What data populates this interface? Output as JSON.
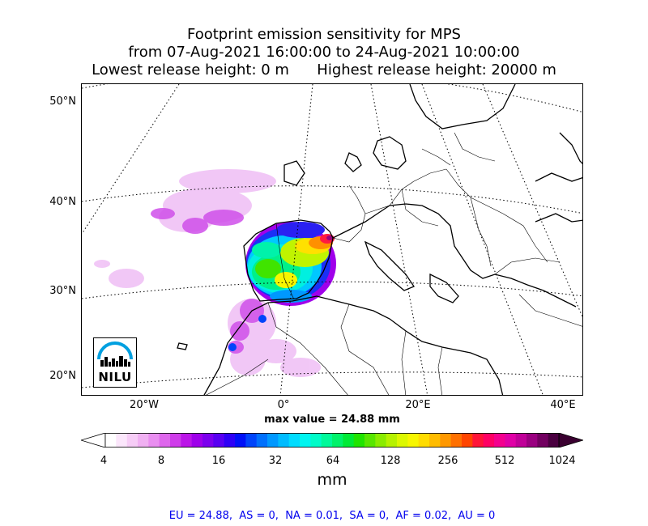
{
  "title": {
    "line1": "Footprint emission sensitivity for MPS",
    "line2": "from 07-Aug-2021 16:00:00 to 24-Aug-2021 10:00:00",
    "line3": "Lowest release height: 0 m      Highest release height: 20000 m"
  },
  "map": {
    "lat_labels": [
      "50°N",
      "40°N",
      "30°N",
      "20°N"
    ],
    "lon_labels": [
      "20°W",
      "0°",
      "20°E",
      "40°E"
    ],
    "max_value_text": "max value = 24.88 mm",
    "logo_text": "NILU"
  },
  "colorbar": {
    "tick_labels": [
      "4",
      "8",
      "16",
      "32",
      "64",
      "128",
      "256",
      "512",
      "1024"
    ],
    "units": "mm",
    "colors": [
      "#ffffff",
      "#fbe6fb",
      "#f6ccf6",
      "#f0b0f2",
      "#e98ef0",
      "#de66ec",
      "#cf3cea",
      "#bb14e8",
      "#9e00ea",
      "#7c00ee",
      "#5800f2",
      "#2e00f6",
      "#0010f8",
      "#0044fb",
      "#0070fd",
      "#0098ff",
      "#00bcff",
      "#00dcff",
      "#00f5f0",
      "#00fcc8",
      "#00f99a",
      "#00f26a",
      "#00ea36",
      "#20e400",
      "#58e600",
      "#8aec00",
      "#b6f200",
      "#dcf800",
      "#f7f600",
      "#ffdc00",
      "#ffbc00",
      "#ff9800",
      "#ff7000",
      "#ff4400",
      "#ff1438",
      "#ff0064",
      "#f4008e",
      "#e000a6",
      "#c00098",
      "#9a0080",
      "#720060",
      "#4a0040"
    ]
  },
  "region_stats": "EU = 24.88,  AS = 0,  NA = 0.01,  SA = 0,  AF = 0.02,  AU = 0"
}
